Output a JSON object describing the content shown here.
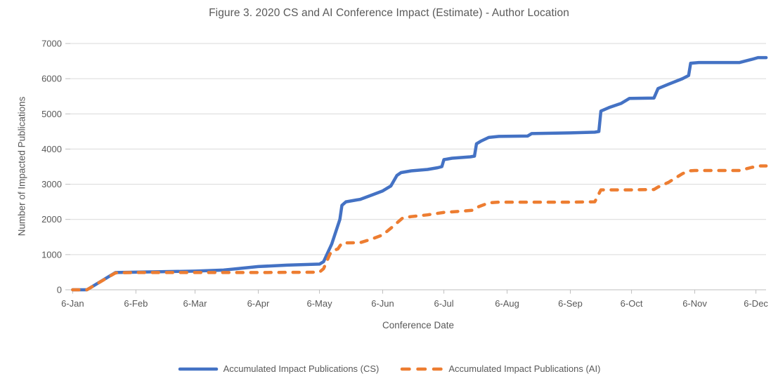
{
  "figure": {
    "title": "Figure 3. 2020 CS and AI Conference Impact (Estimate) - Author Location",
    "x_axis_title": "Conference Date",
    "y_axis_title": "Number of Impacted Publications"
  },
  "chart_data": {
    "type": "line",
    "title": "Figure 3. 2020 CS and AI Conference Impact (Estimate) - Author Location",
    "xlabel": "Conference Date",
    "ylabel": "Number of Impacted Publications",
    "ylim": [
      0,
      7000
    ],
    "y_ticks": [
      0,
      1000,
      2000,
      3000,
      4000,
      5000,
      6000,
      7000
    ],
    "x_ticks": [
      {
        "label": "6-Jan",
        "date": "2020-01-06"
      },
      {
        "label": "6-Feb",
        "date": "2020-02-06"
      },
      {
        "label": "6-Mar",
        "date": "2020-03-06"
      },
      {
        "label": "6-Apr",
        "date": "2020-04-06"
      },
      {
        "label": "6-May",
        "date": "2020-05-06"
      },
      {
        "label": "6-Jun",
        "date": "2020-06-06"
      },
      {
        "label": "6-Jul",
        "date": "2020-07-06"
      },
      {
        "label": "6-Aug",
        "date": "2020-08-06"
      },
      {
        "label": "6-Sep",
        "date": "2020-09-06"
      },
      {
        "label": "6-Oct",
        "date": "2020-10-06"
      },
      {
        "label": "6-Nov",
        "date": "2020-11-06"
      },
      {
        "label": "6-Dec",
        "date": "2020-12-06"
      }
    ],
    "grid": "horizontal",
    "legend_position": "bottom",
    "colors": {
      "gridline": "#D9D9D9",
      "axis": "#BFBFBF",
      "text": "#595959"
    },
    "series": [
      {
        "name": "Accumulated Impact Publications (CS)",
        "color": "#4472C4",
        "style": "solid",
        "points": [
          [
            "2020-01-06",
            0
          ],
          [
            "2020-01-13",
            0
          ],
          [
            "2020-01-27",
            490
          ],
          [
            "2020-02-06",
            500
          ],
          [
            "2020-03-06",
            530
          ],
          [
            "2020-03-20",
            560
          ],
          [
            "2020-04-06",
            660
          ],
          [
            "2020-04-20",
            700
          ],
          [
            "2020-05-06",
            730
          ],
          [
            "2020-05-08",
            800
          ],
          [
            "2020-05-12",
            1300
          ],
          [
            "2020-05-16",
            2000
          ],
          [
            "2020-05-17",
            2400
          ],
          [
            "2020-05-19",
            2500
          ],
          [
            "2020-05-26",
            2570
          ],
          [
            "2020-06-01",
            2700
          ],
          [
            "2020-06-06",
            2810
          ],
          [
            "2020-06-10",
            2950
          ],
          [
            "2020-06-13",
            3250
          ],
          [
            "2020-06-15",
            3330
          ],
          [
            "2020-06-20",
            3380
          ],
          [
            "2020-06-28",
            3420
          ],
          [
            "2020-07-03",
            3470
          ],
          [
            "2020-07-05",
            3500
          ],
          [
            "2020-07-06",
            3700
          ],
          [
            "2020-07-10",
            3740
          ],
          [
            "2020-07-19",
            3780
          ],
          [
            "2020-07-21",
            3800
          ],
          [
            "2020-07-22",
            4150
          ],
          [
            "2020-07-24",
            4220
          ],
          [
            "2020-07-28",
            4330
          ],
          [
            "2020-08-02",
            4360
          ],
          [
            "2020-08-16",
            4370
          ],
          [
            "2020-08-18",
            4440
          ],
          [
            "2020-09-06",
            4460
          ],
          [
            "2020-09-18",
            4480
          ],
          [
            "2020-09-20",
            4500
          ],
          [
            "2020-09-21",
            5080
          ],
          [
            "2020-09-25",
            5180
          ],
          [
            "2020-10-01",
            5300
          ],
          [
            "2020-10-05",
            5440
          ],
          [
            "2020-10-17",
            5450
          ],
          [
            "2020-10-19",
            5720
          ],
          [
            "2020-10-24",
            5840
          ],
          [
            "2020-10-31",
            6000
          ],
          [
            "2020-11-03",
            6090
          ],
          [
            "2020-11-04",
            6440
          ],
          [
            "2020-11-08",
            6460
          ],
          [
            "2020-11-28",
            6460
          ],
          [
            "2020-12-04",
            6550
          ],
          [
            "2020-12-07",
            6600
          ],
          [
            "2020-12-11",
            6600
          ]
        ]
      },
      {
        "name": "Accumulated Impact Publications (AI)",
        "color": "#ED7D31",
        "style": "dashed",
        "points": [
          [
            "2020-01-06",
            0
          ],
          [
            "2020-01-13",
            0
          ],
          [
            "2020-01-27",
            480
          ],
          [
            "2020-02-06",
            490
          ],
          [
            "2020-03-06",
            490
          ],
          [
            "2020-04-06",
            490
          ],
          [
            "2020-05-06",
            500
          ],
          [
            "2020-05-08",
            600
          ],
          [
            "2020-05-11",
            1000
          ],
          [
            "2020-05-12",
            1100
          ],
          [
            "2020-05-15",
            1160
          ],
          [
            "2020-05-17",
            1330
          ],
          [
            "2020-05-26",
            1340
          ],
          [
            "2020-06-01",
            1450
          ],
          [
            "2020-06-06",
            1560
          ],
          [
            "2020-06-10",
            1750
          ],
          [
            "2020-06-13",
            1900
          ],
          [
            "2020-06-16",
            2050
          ],
          [
            "2020-06-20",
            2080
          ],
          [
            "2020-06-28",
            2130
          ],
          [
            "2020-07-06",
            2200
          ],
          [
            "2020-07-16",
            2240
          ],
          [
            "2020-07-20",
            2260
          ],
          [
            "2020-07-23",
            2360
          ],
          [
            "2020-07-28",
            2470
          ],
          [
            "2020-08-02",
            2490
          ],
          [
            "2020-09-06",
            2490
          ],
          [
            "2020-09-18",
            2500
          ],
          [
            "2020-09-21",
            2840
          ],
          [
            "2020-10-06",
            2840
          ],
          [
            "2020-10-17",
            2850
          ],
          [
            "2020-10-19",
            2920
          ],
          [
            "2020-10-24",
            3050
          ],
          [
            "2020-10-31",
            3300
          ],
          [
            "2020-11-03",
            3380
          ],
          [
            "2020-11-06",
            3390
          ],
          [
            "2020-11-28",
            3390
          ],
          [
            "2020-12-04",
            3480
          ],
          [
            "2020-12-08",
            3520
          ],
          [
            "2020-12-11",
            3520
          ]
        ]
      }
    ]
  }
}
